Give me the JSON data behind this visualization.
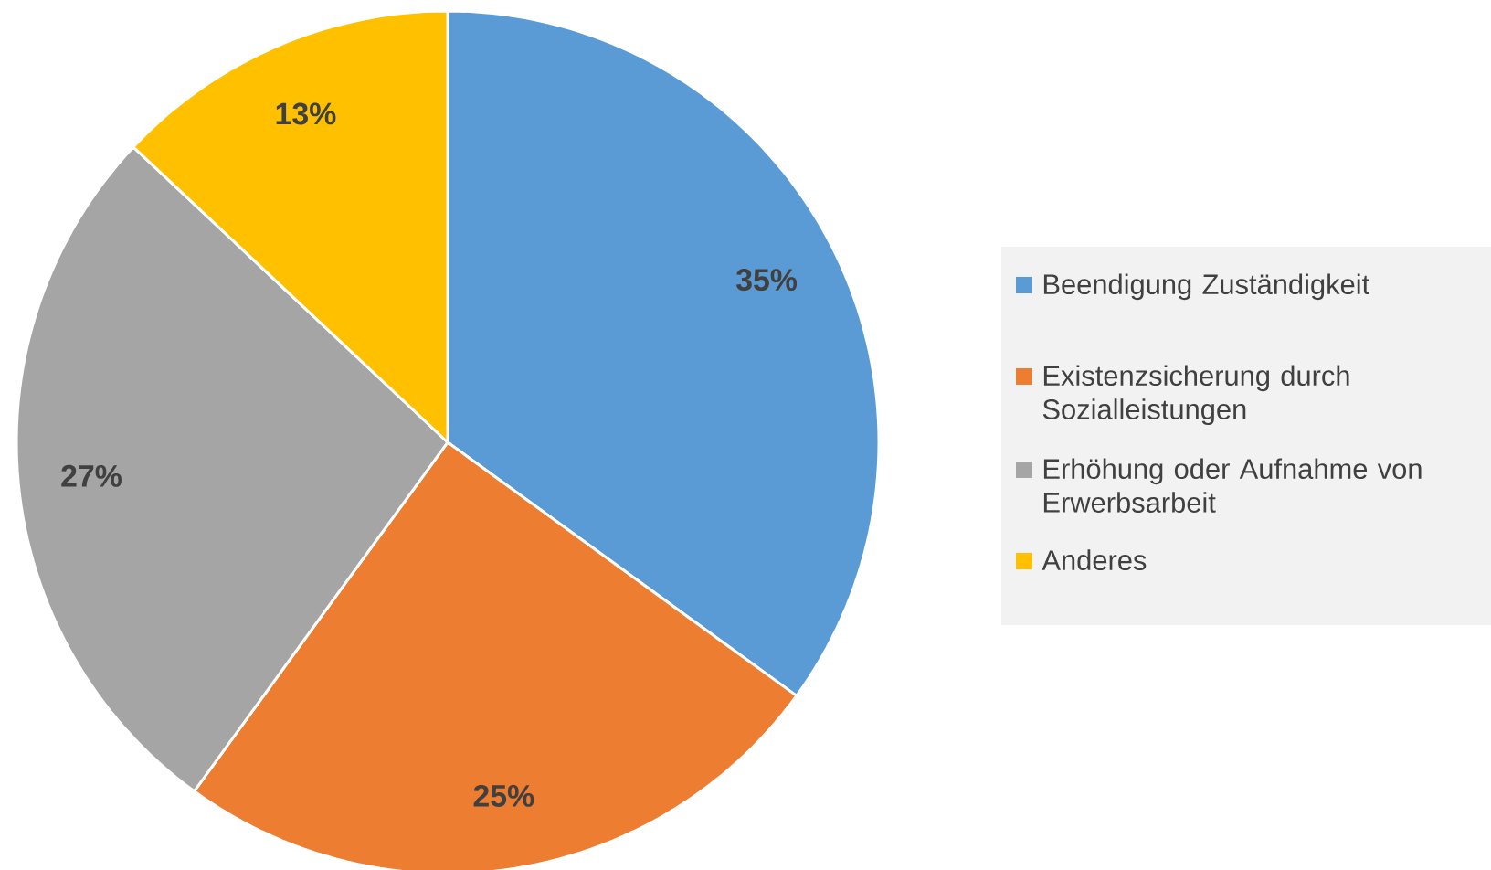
{
  "chart_data": {
    "type": "pie",
    "categories": [
      "Beendigung Zuständigkeit",
      "Existenzsicherung durch Sozialleistungen",
      "Erhöhung oder Aufnahme von Erwerbsarbeit",
      "Anderes"
    ],
    "values": [
      35,
      25,
      27,
      13
    ],
    "colors": [
      "#5b9bd5",
      "#ed7d31",
      "#a5a5a5",
      "#ffc000"
    ],
    "value_labels": [
      "35%",
      "25%",
      "27%",
      "13%"
    ],
    "legend": "right"
  }
}
